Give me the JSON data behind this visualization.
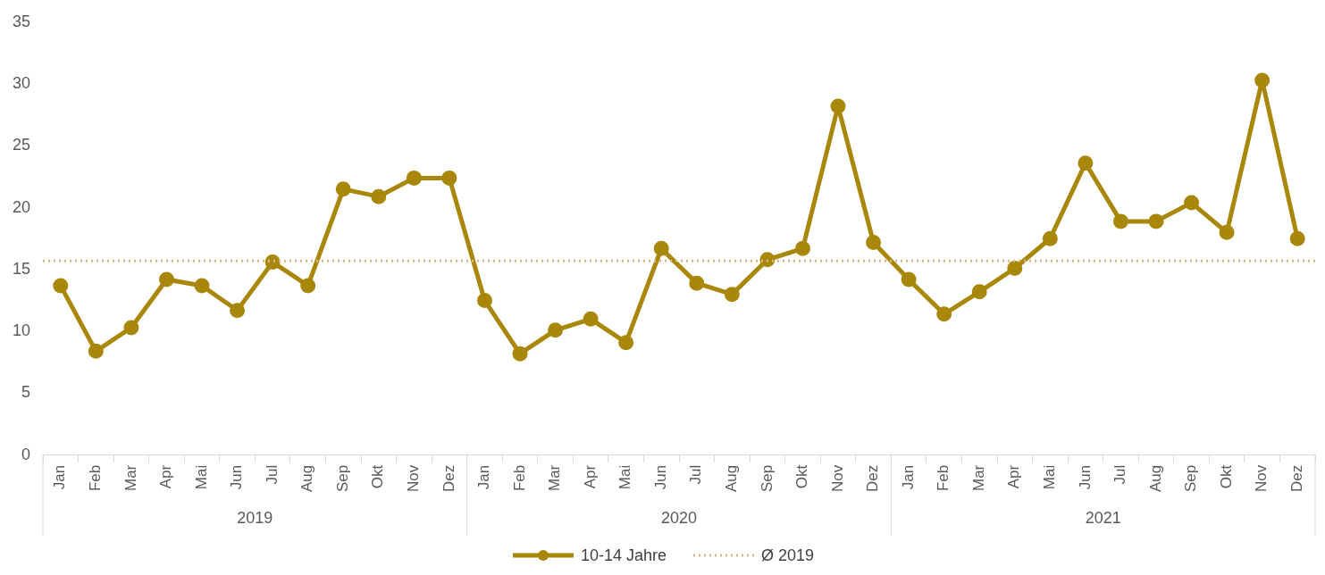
{
  "chart_data": {
    "type": "line",
    "categories": [
      "Jan",
      "Feb",
      "Mar",
      "Apr",
      "Mai",
      "Jun",
      "Jul",
      "Aug",
      "Sep",
      "Okt",
      "Nov",
      "Dez",
      "Jan",
      "Feb",
      "Mar",
      "Apr",
      "Mai",
      "Jun",
      "Jul",
      "Aug",
      "Sep",
      "Okt",
      "Nov",
      "Dez",
      "Jan",
      "Feb",
      "Mar",
      "Apr",
      "Mai",
      "Jun",
      "Jul",
      "Aug",
      "Sep",
      "Okt",
      "Nov",
      "Dez"
    ],
    "series": [
      {
        "name": "10-14 Jahre",
        "color": "#a8870a",
        "values": [
          13.7,
          8.4,
          10.3,
          14.2,
          13.7,
          11.7,
          15.6,
          13.7,
          21.5,
          20.9,
          22.4,
          22.4,
          12.5,
          8.2,
          10.1,
          11.0,
          9.1,
          16.7,
          13.9,
          13.0,
          15.8,
          16.7,
          28.2,
          17.2,
          14.2,
          11.4,
          13.2,
          15.1,
          17.5,
          23.6,
          18.9,
          18.9,
          20.4,
          18.0,
          30.3,
          17.5
        ]
      }
    ],
    "ref_lines": [
      {
        "axis": "y",
        "value": 15.7,
        "label": "Ø 2019",
        "color": "#d9b88a",
        "line_style": "dotted"
      }
    ],
    "annotations": [
      "2019",
      "2020",
      "2021"
    ],
    "ylim": [
      0,
      35
    ],
    "yticks": [
      0,
      5,
      10,
      15,
      20,
      25,
      30,
      35
    ],
    "grid": false,
    "legend": "bottom",
    "marker": "circle",
    "line_style": "solid"
  }
}
